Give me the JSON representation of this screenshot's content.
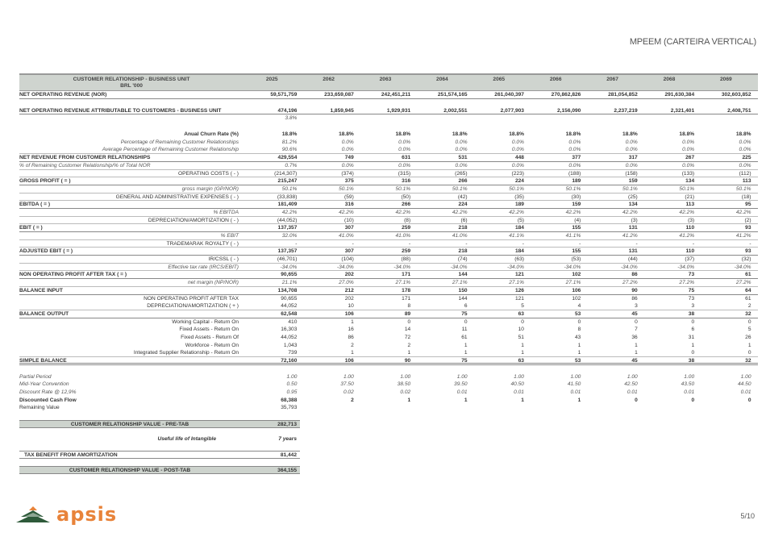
{
  "page_title": "MPEEM (CARTEIRA VERTICAL)",
  "header": {
    "label_line1": "CUSTOMER RELATIONSHIP - BUSINESS UNIT",
    "label_line2": "BRL '000",
    "years": [
      "2025",
      "2062",
      "2063",
      "2064",
      "2065",
      "2066",
      "2067",
      "2068",
      "2069"
    ]
  },
  "sections": [
    {
      "rows": [
        {
          "label": "NET OPERATING REVENUE (NOR)",
          "style": "bold",
          "values": [
            "59,571,759",
            "233,659,087",
            "242,451,211",
            "251,574,165",
            "261,040,397",
            "270,862,826",
            "281,054,852",
            "291,630,384",
            "302,603,852"
          ]
        }
      ]
    },
    {
      "rows": [
        {
          "label": "NET OPERATING REVENUE ATTRIBUTABLE TO CUSTOMERS - BUSINESS UNIT",
          "style": "bold",
          "values": [
            "474,196",
            "1,859,945",
            "1,929,931",
            "2,002,551",
            "2,077,903",
            "2,156,090",
            "2,237,219",
            "2,321,401",
            "2,408,751"
          ]
        },
        {
          "label": "",
          "style": "ital noline",
          "values": [
            "3.8%",
            "",
            "",
            "",
            "",
            "",
            "",
            "",
            ""
          ]
        }
      ]
    },
    {
      "rows": [
        {
          "label": "Anual Churn Rate (%)",
          "style": "bold right noline",
          "values": [
            "18.8%",
            "18.8%",
            "18.8%",
            "18.8%",
            "18.8%",
            "18.8%",
            "18.8%",
            "18.8%",
            "18.8%"
          ]
        },
        {
          "label": "Percentage of Remaining Customer Relationships",
          "style": "ital right noline",
          "values": [
            "81.2%",
            "0.0%",
            "0.0%",
            "0.0%",
            "0.0%",
            "0.0%",
            "0.0%",
            "0.0%",
            "0.0%"
          ]
        },
        {
          "label": "Average Percentage of Remaining Customer Relationship",
          "style": "ital right",
          "values": [
            "90.6%",
            "0.0%",
            "0.0%",
            "0.0%",
            "0.0%",
            "0.0%",
            "0.0%",
            "0.0%",
            "0.0%"
          ]
        },
        {
          "label": "NET REVENUE FROM CUSTOMER RELATIONSHIPS",
          "style": "bold",
          "values": [
            "429,554",
            "749",
            "631",
            "531",
            "448",
            "377",
            "317",
            "267",
            "225"
          ]
        },
        {
          "label": "% of Remaining Customer Relationship/% of Total NOR",
          "style": "ital",
          "values": [
            "0.7%",
            "0.0%",
            "0.0%",
            "0.0%",
            "0.0%",
            "0.0%",
            "0.0%",
            "0.0%",
            "0.0%"
          ]
        },
        {
          "label": "OPERATING COSTS ( - )",
          "style": "right",
          "values": [
            "(214,307)",
            "(374)",
            "(315)",
            "(265)",
            "(223)",
            "(188)",
            "(158)",
            "(133)",
            "(112)"
          ]
        },
        {
          "label": "GROSS PROFIT ( = )",
          "style": "bold",
          "values": [
            "215,247",
            "375",
            "316",
            "266",
            "224",
            "189",
            "159",
            "134",
            "113"
          ]
        },
        {
          "label": "gross margin (GP/NOR)",
          "style": "ital right",
          "values": [
            "50.1%",
            "50.1%",
            "50.1%",
            "50.1%",
            "50.1%",
            "50.1%",
            "50.1%",
            "50.1%",
            "50.1%"
          ]
        },
        {
          "label": "GENERAL AND ADMINISTRATIVE EXPENSES ( - )",
          "style": "right",
          "values": [
            "(33,838)",
            "(59)",
            "(50)",
            "(42)",
            "(35)",
            "(30)",
            "(25)",
            "(21)",
            "(18)"
          ]
        },
        {
          "label": "EBITDA ( = )",
          "style": "bold",
          "values": [
            "181,409",
            "316",
            "266",
            "224",
            "189",
            "159",
            "134",
            "113",
            "95"
          ]
        },
        {
          "label": "% EBITDA",
          "style": "ital right",
          "values": [
            "42.2%",
            "42.2%",
            "42.2%",
            "42.2%",
            "42.2%",
            "42.2%",
            "42.2%",
            "42.2%",
            "42.2%"
          ]
        },
        {
          "label": "DEPRECIATION/AMORTIZATION ( - )",
          "style": "right",
          "values": [
            "(44,052)",
            "(10)",
            "(8)",
            "(6)",
            "(5)",
            "(4)",
            "(3)",
            "(3)",
            "(2)"
          ]
        },
        {
          "label": "EBIT ( = )",
          "style": "bold",
          "values": [
            "137,357",
            "307",
            "259",
            "218",
            "184",
            "155",
            "131",
            "110",
            "93"
          ]
        },
        {
          "label": "% EBIT",
          "style": "ital right",
          "values": [
            "32.0%",
            "41.0%",
            "41.0%",
            "41.0%",
            "41.1%",
            "41.1%",
            "41.2%",
            "41.2%",
            "41.2%"
          ]
        },
        {
          "label": "TRADEMARAK ROYALTY ( - )",
          "style": "right",
          "values": [
            "-",
            "-",
            "-",
            "-",
            "-",
            "-",
            "-",
            "-",
            "-"
          ]
        },
        {
          "label": "ADJUSTED EBIT ( = )",
          "style": "bold",
          "values": [
            "137,357",
            "307",
            "259",
            "218",
            "184",
            "155",
            "131",
            "110",
            "93"
          ]
        },
        {
          "label": "IR/CSSL ( - )",
          "style": "right",
          "values": [
            "(46,701)",
            "(104)",
            "(88)",
            "(74)",
            "(63)",
            "(53)",
            "(44)",
            "(37)",
            "(32)"
          ]
        },
        {
          "label": "Effective tax rate (IRCS/EBIT)",
          "style": "ital right",
          "values": [
            "-34.0%",
            "-34.0%",
            "-34.0%",
            "-34.0%",
            "-34.0%",
            "-34.0%",
            "-34.0%",
            "-34.0%",
            "-34.0%"
          ]
        },
        {
          "label": "NON OPERATING PROFIT AFTER TAX ( = )",
          "style": "bold",
          "values": [
            "90,655",
            "202",
            "171",
            "144",
            "121",
            "102",
            "86",
            "73",
            "61"
          ]
        },
        {
          "label": "net margin (NP/NOR)",
          "style": "ital right",
          "values": [
            "21.1%",
            "27.0%",
            "27.1%",
            "27.1%",
            "27.1%",
            "27.1%",
            "27.2%",
            "27.2%",
            "27.2%"
          ]
        },
        {
          "label": "BALANCE INPUT",
          "style": "bold",
          "values": [
            "134,708",
            "212",
            "178",
            "150",
            "126",
            "106",
            "90",
            "75",
            "64"
          ]
        },
        {
          "label": "NON OPERATING PROFIT AFTER TAX",
          "style": "right noline",
          "values": [
            "90,655",
            "202",
            "171",
            "144",
            "121",
            "102",
            "86",
            "73",
            "61"
          ]
        },
        {
          "label": "DEPRECIATION/AMORTIZATION ( + )",
          "style": "right",
          "values": [
            "44,052",
            "10",
            "8",
            "6",
            "5",
            "4",
            "3",
            "3",
            "2"
          ]
        },
        {
          "label": "BALANCE OUTPUT",
          "style": "bold",
          "values": [
            "62,548",
            "106",
            "89",
            "75",
            "63",
            "53",
            "45",
            "38",
            "32"
          ]
        },
        {
          "label": "Working Capital - Return On",
          "style": "right noline",
          "values": [
            "410",
            "1",
            "0",
            "0",
            "0",
            "0",
            "0",
            "0",
            "0"
          ]
        },
        {
          "label": "Fixed Assets - Return On",
          "style": "right noline",
          "values": [
            "16,303",
            "16",
            "14",
            "11",
            "10",
            "8",
            "7",
            "6",
            "5"
          ]
        },
        {
          "label": "Fixed Assets - Return Of",
          "style": "right noline",
          "values": [
            "44,052",
            "86",
            "72",
            "61",
            "51",
            "43",
            "36",
            "31",
            "26"
          ]
        },
        {
          "label": "Workforce - Return On",
          "style": "right noline",
          "values": [
            "1,043",
            "2",
            "2",
            "1",
            "1",
            "1",
            "1",
            "1",
            "1"
          ]
        },
        {
          "label": "Integrated Supplier Relationship - Return On",
          "style": "right",
          "values": [
            "739",
            "1",
            "1",
            "1",
            "1",
            "1",
            "1",
            "0",
            "0"
          ]
        },
        {
          "label": "SIMPLE BALANCE",
          "style": "bold dbl",
          "values": [
            "72,160",
            "106",
            "90",
            "75",
            "63",
            "53",
            "45",
            "38",
            "32"
          ]
        }
      ]
    },
    {
      "rows": [
        {
          "label": "Partial Period",
          "style": "ital noline",
          "values": [
            "1.00",
            "1.00",
            "1.00",
            "1.00",
            "1.00",
            "1.00",
            "1.00",
            "1.00",
            "1.00"
          ]
        },
        {
          "label": "Mid-Year Convention",
          "style": "ital noline",
          "values": [
            "0.50",
            "37.50",
            "38.50",
            "39.50",
            "40.50",
            "41.50",
            "42.50",
            "43.50",
            "44.50"
          ]
        },
        {
          "label": "Discount Rate @ 12,9%",
          "style": "ital noline",
          "values": [
            "0.95",
            "0.02",
            "0.02",
            "0.01",
            "0.01",
            "0.01",
            "0.01",
            "0.01",
            "0.01"
          ]
        },
        {
          "label": "Discounted Cash Flow",
          "style": "bold noline",
          "values": [
            "68,388",
            "2",
            "1",
            "1",
            "1",
            "1",
            "0",
            "0",
            "0"
          ]
        },
        {
          "label": "Remaining Value",
          "style": "noline",
          "values": [
            "35,793",
            "",
            "",
            "",
            "",
            "",
            "",
            "",
            ""
          ]
        }
      ]
    }
  ],
  "summary": {
    "pre_tab": {
      "label": "CUSTOMER RELATIONSHIP VALUE - PRE-TAB",
      "value": "282,713"
    },
    "useful_life": {
      "label": "Useful life of Intangible",
      "value": "7 years"
    },
    "tax_benefit": {
      "label": "TAX BENEFIT FROM AMORTIZATION",
      "value": "81,442"
    },
    "post_tab": {
      "label": "CUSTOMER RELATIONSHIP VALUE - POST-TAB",
      "value": "364,155"
    }
  },
  "logo": {
    "text": "apsis",
    "colors": {
      "orange": "#e8833a",
      "green": "#2e5a3a"
    }
  },
  "page_number": "5/10"
}
